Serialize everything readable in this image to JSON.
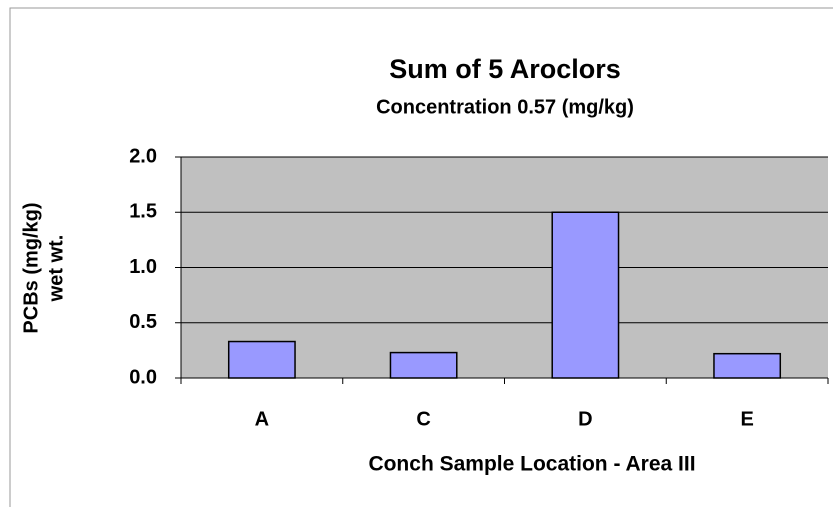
{
  "chart_data": {
    "type": "bar",
    "title": "Sum of 5 Aroclors",
    "subtitle": "Concentration 0.57 (mg/kg)",
    "y_label": [
      "PCBs (mg/kg)",
      "wet wt."
    ],
    "x_label": "Conch Sample Location - Area III",
    "categories": [
      "A",
      "C",
      "D",
      "E"
    ],
    "values": [
      0.33,
      0.23,
      1.5,
      0.22
    ],
    "color": "#9999ff",
    "ylim": [
      0,
      2
    ],
    "yticks": [
      {
        "value": 0,
        "label": "0.0"
      },
      {
        "value": 0.5,
        "label": "0.5"
      },
      {
        "value": 1,
        "label": "1.0"
      },
      {
        "value": 1.5,
        "label": "1.5"
      },
      {
        "value": 2,
        "label": "2.0"
      }
    ],
    "grid": true
  }
}
